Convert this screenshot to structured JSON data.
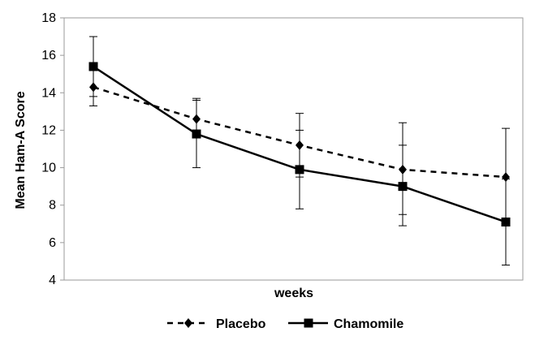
{
  "chart_data": {
    "type": "line",
    "title": "",
    "xlabel": "weeks",
    "ylabel": "Mean Ham-A Score",
    "ylim": [
      4,
      18
    ],
    "yticks": [
      4,
      6,
      8,
      10,
      12,
      14,
      16,
      18
    ],
    "grid": false,
    "legend_position": "bottom",
    "x": [
      1,
      2,
      3,
      4,
      5
    ],
    "series": [
      {
        "name": "Placebo",
        "values": [
          14.3,
          12.6,
          11.2,
          9.9,
          9.5
        ],
        "error_low": [
          13.3,
          11.7,
          9.5,
          7.5,
          6.9
        ],
        "error_high": [
          15.3,
          13.7,
          12.9,
          12.4,
          12.1
        ],
        "line_style": "dashed",
        "marker": "diamond",
        "color": "#000000"
      },
      {
        "name": "Chamomile",
        "values": [
          15.4,
          11.8,
          9.9,
          9.0,
          7.1
        ],
        "error_low": [
          13.8,
          10.0,
          7.8,
          6.9,
          4.8
        ],
        "error_high": [
          17.0,
          13.6,
          12.0,
          11.2,
          9.4
        ],
        "line_style": "solid",
        "marker": "square",
        "color": "#000000"
      }
    ]
  }
}
